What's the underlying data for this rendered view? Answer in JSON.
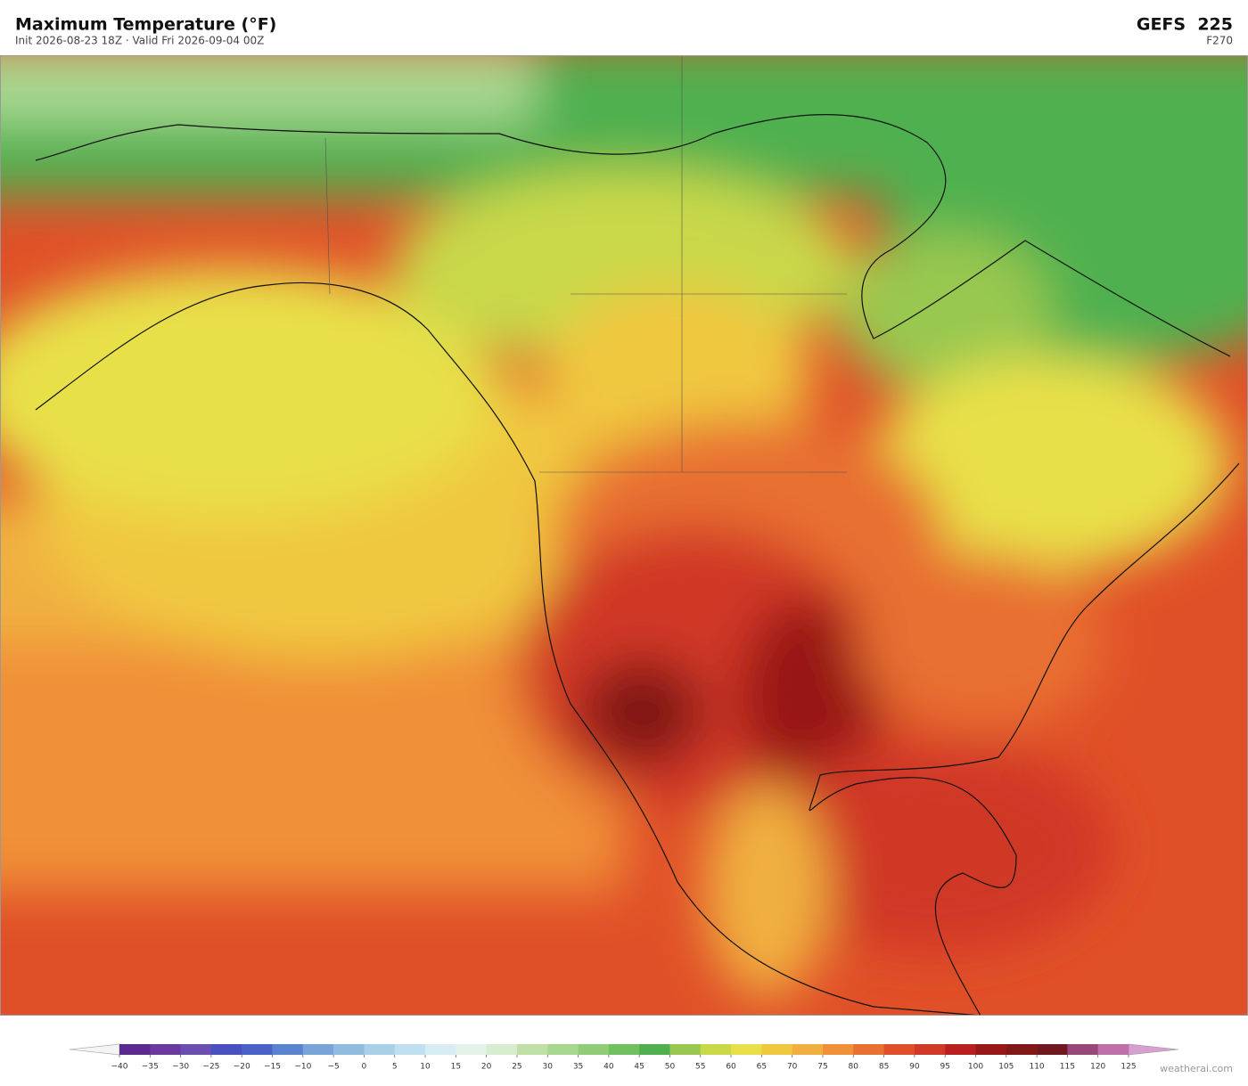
{
  "header": {
    "title": "Maximum Temperature  (°F)",
    "subtitle": "Init 2026-08-23 18Z  ·  Valid Fri 2026-09-04 00Z",
    "model": "GEFS  225",
    "forecast_hour": "F270"
  },
  "colorbar": {
    "ticks": [
      {
        "value": -40,
        "label": "−40"
      },
      {
        "value": -35,
        "label": "−35"
      },
      {
        "value": -30,
        "label": "−30"
      },
      {
        "value": -25,
        "label": "−25"
      },
      {
        "value": -20,
        "label": "−20"
      },
      {
        "value": -15,
        "label": "−15"
      },
      {
        "value": -10,
        "label": "−10"
      },
      {
        "value": -5,
        "label": "−5"
      },
      0,
      5,
      10,
      15,
      20,
      25,
      30,
      35,
      40,
      45,
      50,
      55,
      60,
      65,
      70,
      75,
      80,
      85,
      90,
      95,
      100,
      105,
      110,
      115,
      120,
      125
    ],
    "colors": [
      "#5b2a8e",
      "#6b3a9e",
      "#6a4fb0",
      "#4a4fc0",
      "#4a62c8",
      "#5a84d0",
      "#78a4d8",
      "#90bce0",
      "#a8d0e8",
      "#c0e0f0",
      "#d8ecf4",
      "#e4f2ea",
      "#d8ecd0",
      "#c0e0a8",
      "#a8d890",
      "#90cc78",
      "#70c060",
      "#50b050",
      "#98c850",
      "#c8d848",
      "#e8e048",
      "#f0c840",
      "#f0b040",
      "#f09038",
      "#e87030",
      "#e05028",
      "#d03828",
      "#b82020",
      "#981818",
      "#801818",
      "#701820",
      "#984878",
      "#c070a8"
    ],
    "under_color": "#f4f4f4",
    "over_color": "#d8a0d0"
  },
  "footer": {
    "credit": "weatherai.com"
  }
}
